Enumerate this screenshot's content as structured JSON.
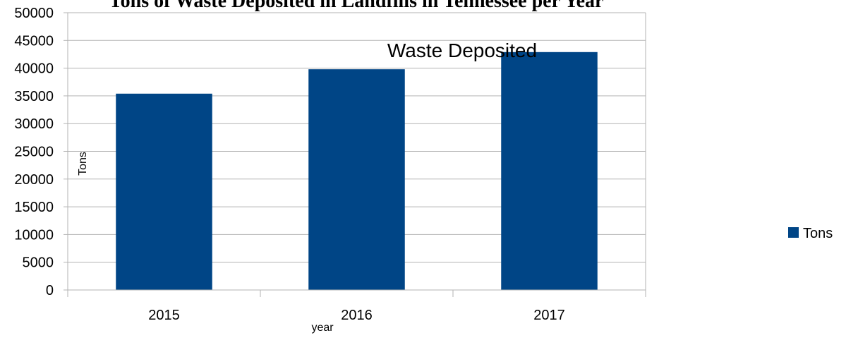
{
  "chart_data": {
    "type": "bar",
    "title": "Tons of Waste Deposited in Landfills in Tennessee per Year",
    "annotation": "Waste Deposited",
    "categories": [
      "2015",
      "2016",
      "2017"
    ],
    "series": [
      {
        "name": "Tons",
        "values": [
          35400,
          39800,
          42900
        ],
        "color": "#004586"
      }
    ],
    "xlabel": "year",
    "ylabel": "Tons",
    "ylim": [
      0,
      50000
    ],
    "yticks": [
      0,
      5000,
      10000,
      15000,
      20000,
      25000,
      30000,
      35000,
      40000,
      45000,
      50000
    ],
    "grid": true,
    "legend": "right"
  }
}
